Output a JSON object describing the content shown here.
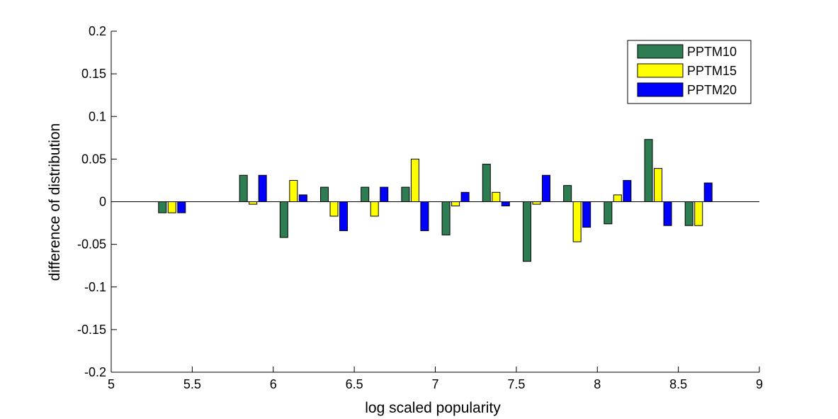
{
  "chart_data": {
    "type": "bar",
    "title": "",
    "xlabel": "log scaled popularity",
    "ylabel": "difference of distribution",
    "xlim": [
      5,
      9
    ],
    "ylim": [
      -0.2,
      0.2
    ],
    "xticks": [
      "5",
      "5.5",
      "6",
      "6.5",
      "7",
      "7.5",
      "8",
      "8.5",
      "9"
    ],
    "xtick_values": [
      5,
      5.5,
      6,
      6.5,
      7,
      7.5,
      8,
      8.5,
      9
    ],
    "yticks": [
      "-0.2",
      "-0.15",
      "-0.1",
      "-0.05",
      "0",
      "0.05",
      "0.1",
      "0.15",
      "0.2"
    ],
    "ytick_values": [
      -0.2,
      -0.15,
      -0.1,
      -0.05,
      0,
      0.05,
      0.1,
      0.15,
      0.2
    ],
    "grid": false,
    "legend_position": "top-right",
    "x": [
      5.375,
      5.625,
      5.875,
      6.125,
      6.375,
      6.625,
      6.875,
      7.125,
      7.375,
      7.625,
      7.875,
      8.125,
      8.375,
      8.625
    ],
    "series": [
      {
        "name": "PPTM10",
        "color": "#2e7d52",
        "values": [
          -0.013,
          0,
          0.031,
          -0.042,
          0.017,
          0.017,
          0.017,
          -0.039,
          0.044,
          -0.07,
          0.019,
          -0.026,
          0.073,
          -0.028
        ]
      },
      {
        "name": "PPTM15",
        "color": "#ffff00",
        "values": [
          -0.013,
          0,
          -0.003,
          0.025,
          -0.017,
          -0.017,
          0.05,
          -0.005,
          0.011,
          -0.003,
          -0.047,
          0.008,
          0.039,
          -0.028
        ]
      },
      {
        "name": "PPTM20",
        "color": "#0000ff",
        "values": [
          -0.013,
          0,
          0.031,
          0.008,
          -0.034,
          0.017,
          -0.034,
          0.011,
          -0.005,
          0.031,
          -0.03,
          0.025,
          -0.028,
          0.022
        ]
      }
    ]
  }
}
